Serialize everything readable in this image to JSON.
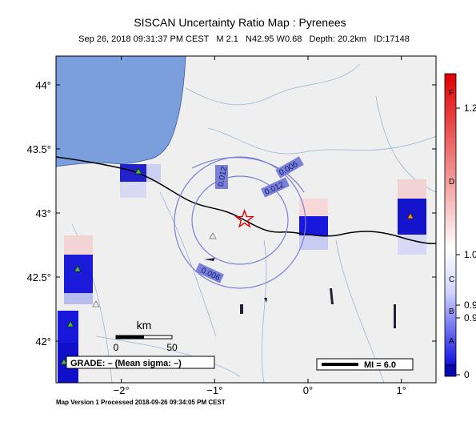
{
  "header": {
    "title": "SISCAN Uncertainty Ratio Map : Pyrenees",
    "subtitle": "Sep 26, 2018 09:31:37 PM CEST   M 2.1   N42.95 W0.68   Depth: 20.2km   ID:17148"
  },
  "map": {
    "lat_ticks": [
      {
        "value": 44,
        "label": "44°"
      },
      {
        "value": 43.5,
        "label": "43.5°"
      },
      {
        "value": 43,
        "label": "43°"
      },
      {
        "value": 42.5,
        "label": "42.5°"
      },
      {
        "value": 42,
        "label": "42°"
      }
    ],
    "lon_ticks": [
      {
        "value": -2,
        "label": "−2°"
      },
      {
        "value": -1,
        "label": "−1°"
      },
      {
        "value": 0,
        "label": "0°"
      },
      {
        "value": 1,
        "label": "1°"
      }
    ],
    "epicenter": {
      "lat": 42.95,
      "lon": -0.68
    },
    "contour_labels": [
      "0.012",
      "0.006",
      "0.012",
      "0.006"
    ],
    "scale_bar": {
      "unit": "km",
      "labels": [
        "0",
        "50"
      ]
    },
    "grade": "GRADE: – (Mean sigma: –)",
    "mi": "MI = 6.0"
  },
  "colorbar": {
    "labels": [
      "F",
      "1.2",
      "D",
      "1.0",
      "C",
      "0.9",
      "B",
      "0.9",
      "A",
      "0"
    ]
  },
  "footer": "Map Version 1 Processed 2018-09-26 09:34:05 PM CEST"
}
